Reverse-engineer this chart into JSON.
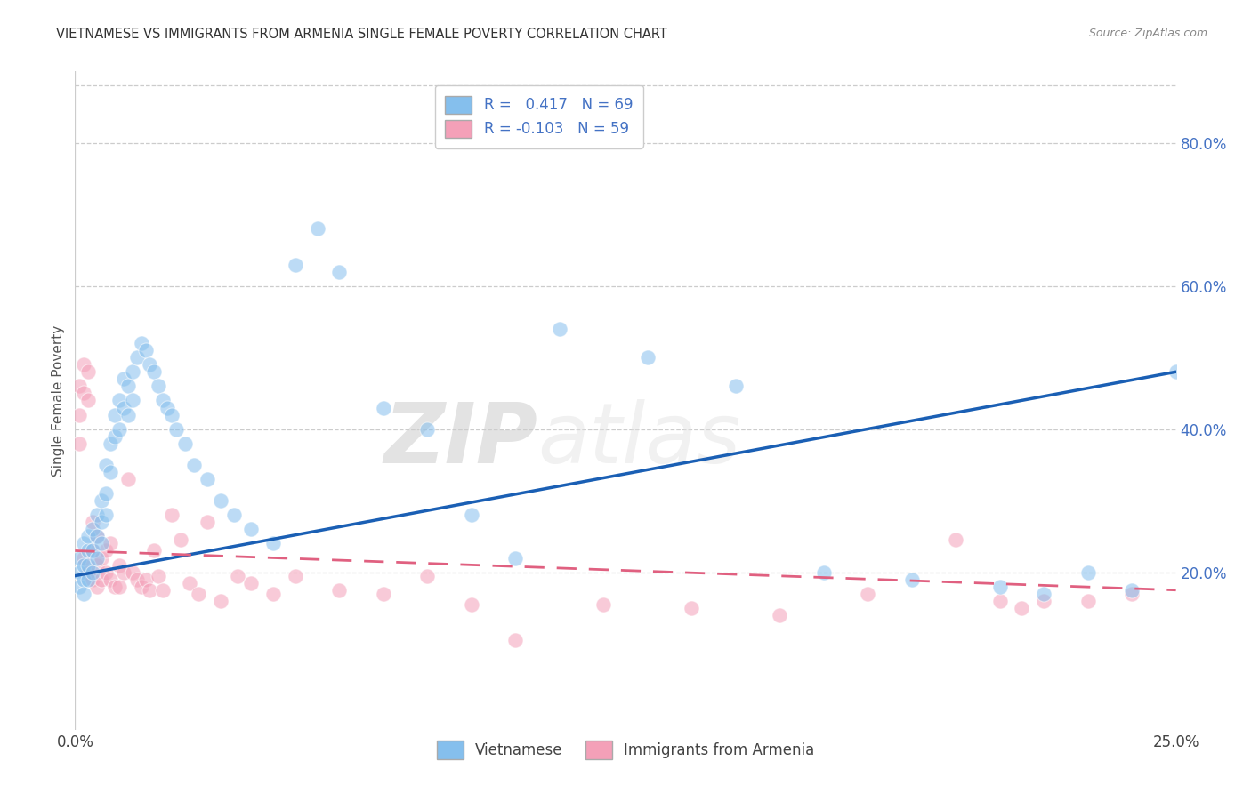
{
  "title": "VIETNAMESE VS IMMIGRANTS FROM ARMENIA SINGLE FEMALE POVERTY CORRELATION CHART",
  "source": "Source: ZipAtlas.com",
  "ylabel": "Single Female Poverty",
  "yticks": [
    "20.0%",
    "40.0%",
    "60.0%",
    "80.0%"
  ],
  "ytick_values": [
    0.2,
    0.4,
    0.6,
    0.8
  ],
  "xlim": [
    0.0,
    0.25
  ],
  "ylim": [
    -0.02,
    0.9
  ],
  "blue_R": 0.417,
  "blue_N": 69,
  "pink_R": -0.103,
  "pink_N": 59,
  "blue_color": "#85BFED",
  "pink_color": "#F4A0B8",
  "blue_line_color": "#1A5FB4",
  "pink_line_color": "#E06080",
  "watermark_ZIP": "ZIP",
  "watermark_atlas": "atlas",
  "legend_label_blue": "Vietnamese",
  "legend_label_pink": "Immigrants from Armenia",
  "background_color": "#FFFFFF",
  "grid_color": "#CCCCCC",
  "blue_x": [
    0.001,
    0.001,
    0.001,
    0.002,
    0.002,
    0.002,
    0.002,
    0.003,
    0.003,
    0.003,
    0.003,
    0.004,
    0.004,
    0.004,
    0.005,
    0.005,
    0.005,
    0.006,
    0.006,
    0.006,
    0.007,
    0.007,
    0.007,
    0.008,
    0.008,
    0.009,
    0.009,
    0.01,
    0.01,
    0.011,
    0.011,
    0.012,
    0.012,
    0.013,
    0.013,
    0.014,
    0.015,
    0.016,
    0.017,
    0.018,
    0.019,
    0.02,
    0.021,
    0.022,
    0.023,
    0.025,
    0.027,
    0.03,
    0.033,
    0.036,
    0.04,
    0.045,
    0.05,
    0.055,
    0.06,
    0.07,
    0.08,
    0.09,
    0.1,
    0.11,
    0.13,
    0.15,
    0.17,
    0.19,
    0.21,
    0.22,
    0.23,
    0.24,
    0.25
  ],
  "blue_y": [
    0.22,
    0.2,
    0.18,
    0.24,
    0.21,
    0.19,
    0.17,
    0.23,
    0.21,
    0.25,
    0.19,
    0.26,
    0.23,
    0.2,
    0.28,
    0.25,
    0.22,
    0.3,
    0.27,
    0.24,
    0.35,
    0.31,
    0.28,
    0.38,
    0.34,
    0.42,
    0.39,
    0.44,
    0.4,
    0.47,
    0.43,
    0.46,
    0.42,
    0.48,
    0.44,
    0.5,
    0.52,
    0.51,
    0.49,
    0.48,
    0.46,
    0.44,
    0.43,
    0.42,
    0.4,
    0.38,
    0.35,
    0.33,
    0.3,
    0.28,
    0.26,
    0.24,
    0.63,
    0.68,
    0.62,
    0.43,
    0.4,
    0.28,
    0.22,
    0.54,
    0.5,
    0.46,
    0.2,
    0.19,
    0.18,
    0.17,
    0.2,
    0.175,
    0.48
  ],
  "pink_x": [
    0.001,
    0.001,
    0.001,
    0.002,
    0.002,
    0.002,
    0.003,
    0.003,
    0.003,
    0.004,
    0.004,
    0.004,
    0.005,
    0.005,
    0.005,
    0.006,
    0.006,
    0.007,
    0.007,
    0.008,
    0.008,
    0.009,
    0.01,
    0.01,
    0.011,
    0.012,
    0.013,
    0.014,
    0.015,
    0.016,
    0.017,
    0.018,
    0.019,
    0.02,
    0.022,
    0.024,
    0.026,
    0.028,
    0.03,
    0.033,
    0.037,
    0.04,
    0.045,
    0.05,
    0.06,
    0.07,
    0.08,
    0.09,
    0.1,
    0.12,
    0.14,
    0.16,
    0.18,
    0.2,
    0.21,
    0.215,
    0.22,
    0.23,
    0.24
  ],
  "pink_y": [
    0.46,
    0.42,
    0.38,
    0.49,
    0.45,
    0.22,
    0.48,
    0.44,
    0.2,
    0.27,
    0.23,
    0.19,
    0.25,
    0.21,
    0.18,
    0.22,
    0.19,
    0.23,
    0.2,
    0.24,
    0.19,
    0.18,
    0.21,
    0.18,
    0.2,
    0.33,
    0.2,
    0.19,
    0.18,
    0.19,
    0.175,
    0.23,
    0.195,
    0.175,
    0.28,
    0.245,
    0.185,
    0.17,
    0.27,
    0.16,
    0.195,
    0.185,
    0.17,
    0.195,
    0.175,
    0.17,
    0.195,
    0.155,
    0.105,
    0.155,
    0.15,
    0.14,
    0.17,
    0.245,
    0.16,
    0.15,
    0.16,
    0.16,
    0.17
  ],
  "blue_line_x": [
    0.0,
    0.25
  ],
  "blue_line_y": [
    0.195,
    0.48
  ],
  "pink_line_x": [
    0.0,
    0.25
  ],
  "pink_line_y": [
    0.23,
    0.175
  ]
}
